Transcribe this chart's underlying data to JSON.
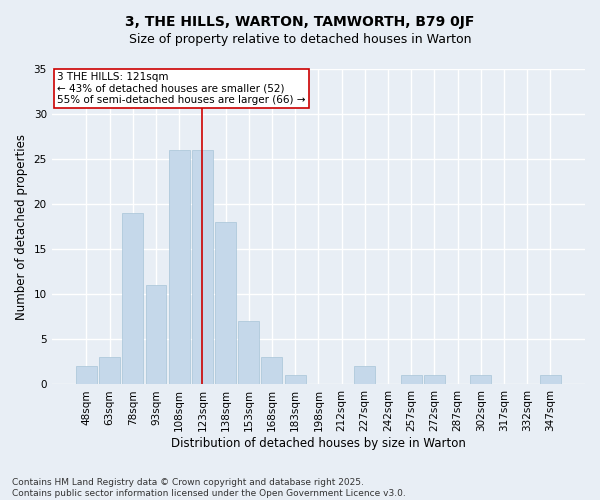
{
  "title": "3, THE HILLS, WARTON, TAMWORTH, B79 0JF",
  "subtitle": "Size of property relative to detached houses in Warton",
  "xlabel": "Distribution of detached houses by size in Warton",
  "ylabel": "Number of detached properties",
  "bar_color": "#c5d8ea",
  "bar_edge_color": "#a8c4d8",
  "background_color": "#e8eef5",
  "grid_color": "#ffffff",
  "categories": [
    "48sqm",
    "63sqm",
    "78sqm",
    "93sqm",
    "108sqm",
    "123sqm",
    "138sqm",
    "153sqm",
    "168sqm",
    "183sqm",
    "198sqm",
    "212sqm",
    "227sqm",
    "242sqm",
    "257sqm",
    "272sqm",
    "287sqm",
    "302sqm",
    "317sqm",
    "332sqm",
    "347sqm"
  ],
  "values": [
    2,
    3,
    19,
    11,
    26,
    26,
    18,
    7,
    3,
    1,
    0,
    0,
    2,
    0,
    1,
    1,
    0,
    1,
    0,
    0,
    1
  ],
  "red_line_index": 5,
  "annotation_text": "3 THE HILLS: 121sqm\n← 43% of detached houses are smaller (52)\n55% of semi-detached houses are larger (66) →",
  "annotation_box_color": "#ffffff",
  "annotation_border_color": "#cc0000",
  "ylim": [
    0,
    35
  ],
  "yticks": [
    0,
    5,
    10,
    15,
    20,
    25,
    30,
    35
  ],
  "footer_text": "Contains HM Land Registry data © Crown copyright and database right 2025.\nContains public sector information licensed under the Open Government Licence v3.0.",
  "red_line_color": "#cc0000",
  "title_fontsize": 10,
  "subtitle_fontsize": 9,
  "axis_label_fontsize": 8.5,
  "tick_fontsize": 7.5,
  "annotation_fontsize": 7.5,
  "footer_fontsize": 6.5
}
